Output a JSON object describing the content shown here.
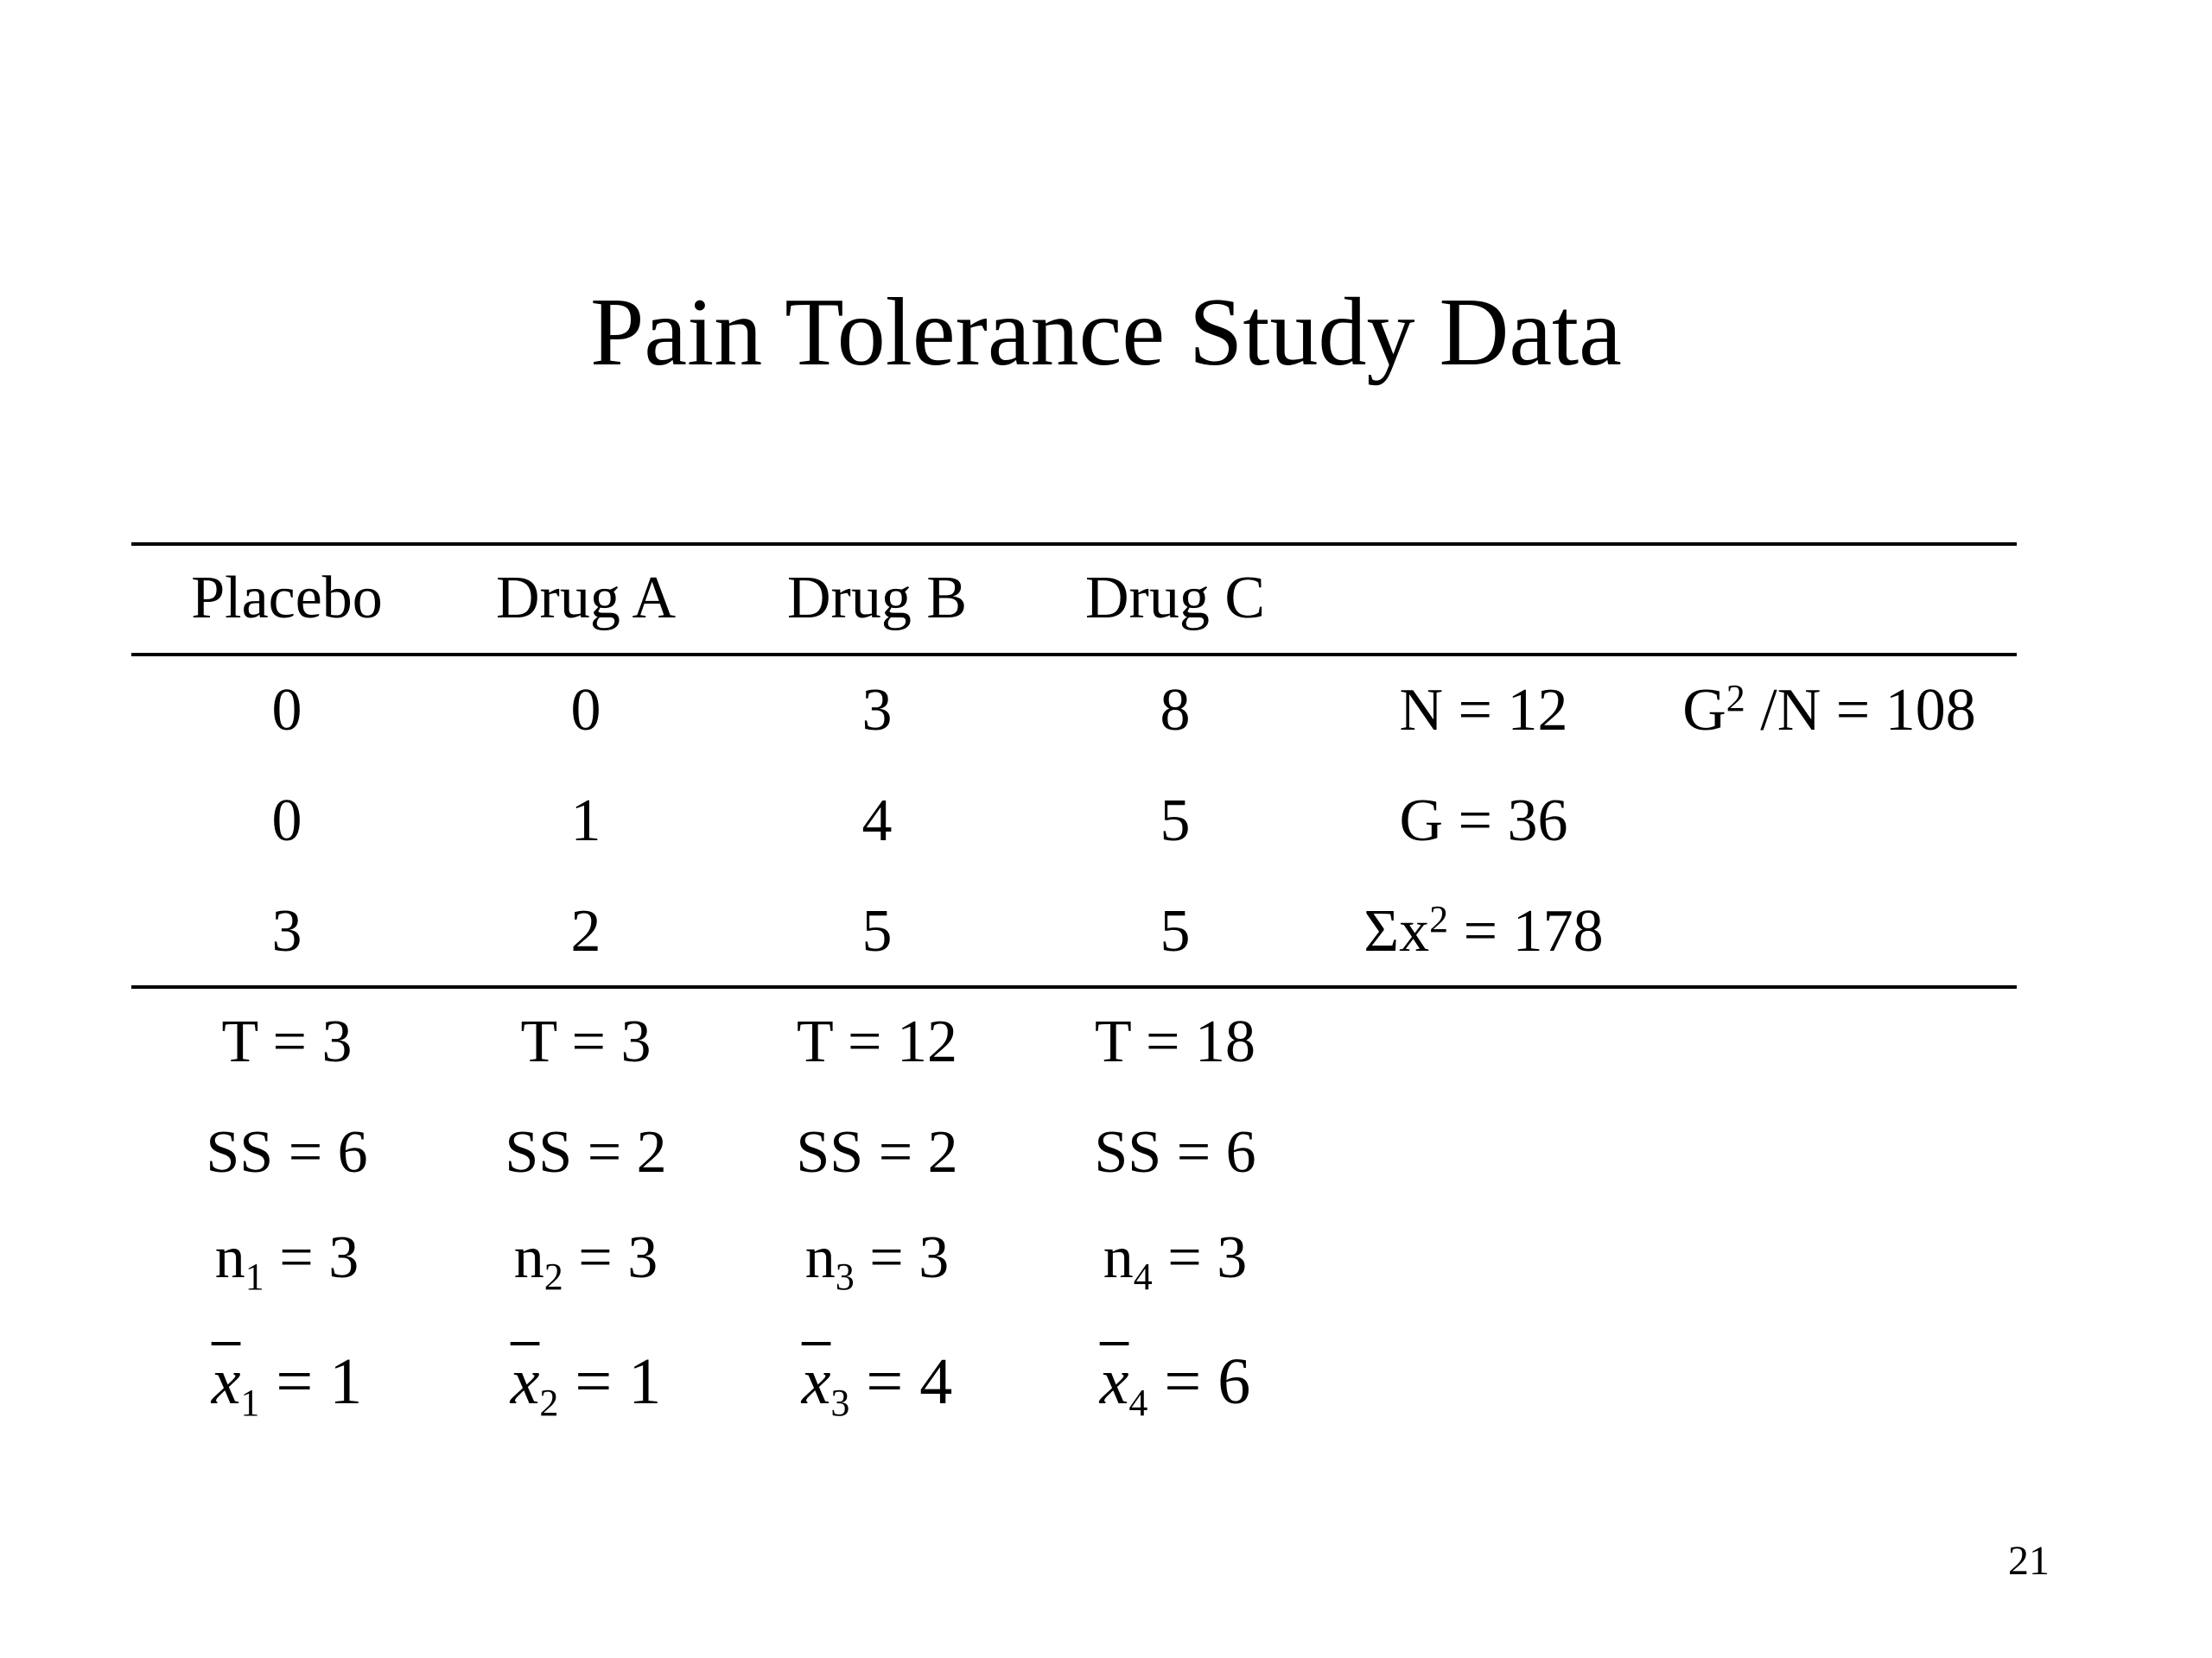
{
  "title": "Pain Tolerance Study Data",
  "page_number": "21",
  "table": {
    "headers": [
      "Placebo",
      "Drug A",
      "Drug B",
      "Drug C"
    ],
    "rows": [
      [
        "0",
        "0",
        "3",
        "8"
      ],
      [
        "0",
        "1",
        "4",
        "5"
      ],
      [
        "3",
        "2",
        "5",
        "5"
      ]
    ],
    "totals": [
      "T = 3",
      "T = 3",
      "T = 12",
      "T = 18"
    ],
    "ss": [
      "SS = 6",
      "SS = 2",
      "SS = 2",
      "SS = 6"
    ],
    "n": [
      {
        "sym": "n",
        "sub": "1",
        "rest": " = 3"
      },
      {
        "sym": "n",
        "sub": "2",
        "rest": " = 3"
      },
      {
        "sym": "n",
        "sub": "3",
        "rest": " = 3"
      },
      {
        "sym": "n",
        "sub": "4",
        "rest": " = 3"
      }
    ],
    "means": [
      {
        "sym": "x",
        "sub": "1",
        "rest": " = 1"
      },
      {
        "sym": "x",
        "sub": "2",
        "rest": " = 1"
      },
      {
        "sym": "x",
        "sub": "3",
        "rest": " = 4"
      },
      {
        "sym": "x",
        "sub": "4",
        "rest": " = 6"
      }
    ]
  },
  "summary": {
    "N": "N = 12",
    "G": "G = 36",
    "sumx2_pre": "Σx",
    "sumx2_sup": "2",
    "sumx2_rest": " = 178",
    "g2n_pre": "G",
    "g2n_sup": "2",
    "g2n_rest": " /N = 108"
  }
}
